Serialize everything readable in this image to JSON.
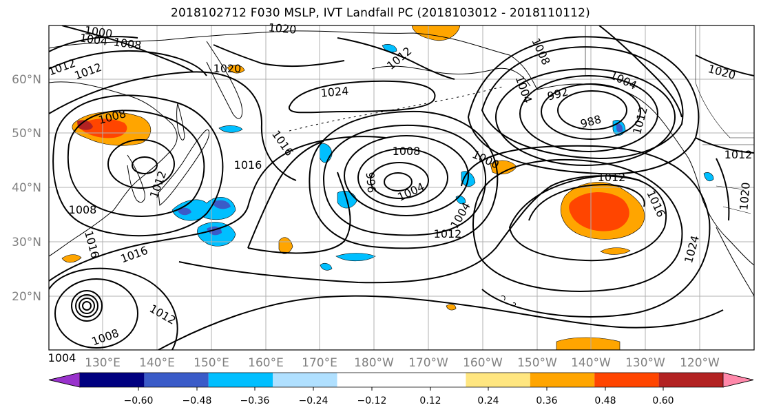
{
  "title": "2018102712 F030 MSLP, IVT Landfall PC (2018103012 - 2018110112)",
  "map": {
    "lat_ticks": [
      "60°N",
      "50°N",
      "40°N",
      "30°N",
      "20°N"
    ],
    "lon_ticks": [
      "130°E",
      "140°E",
      "150°E",
      "160°E",
      "170°E",
      "180°W",
      "170°W",
      "160°W",
      "150°W",
      "140°W",
      "130°W",
      "120°W"
    ],
    "isobar_labels": [
      "1000",
      "1004",
      "1008",
      "1012",
      "1012",
      "1020",
      "1024",
      "1020",
      "1016",
      "1012",
      "1008",
      "1004",
      "992",
      "988",
      "1004",
      "1008",
      "1012",
      "1016",
      "1016",
      "1012",
      "1008",
      "1004",
      "1000",
      "996",
      "1004",
      "1008",
      "1012",
      "1016",
      "1024",
      "1020",
      "1012",
      "1020",
      "1012",
      "1016",
      "1012",
      "1008",
      "1004"
    ]
  },
  "colorbar": {
    "colors": [
      "#9932cc",
      "#000080",
      "#3a5bc8",
      "#00bfff",
      "#b0e0ff",
      "#ffffff",
      "#ffffff",
      "#ffe680",
      "#ffa500",
      "#ff4500",
      "#b22222",
      "#ff88aa"
    ],
    "ticks": [
      "−0.60",
      "−0.48",
      "−0.36",
      "−0.24",
      "−0.12",
      "0.12",
      "0.24",
      "0.36",
      "0.48",
      "0.60"
    ]
  }
}
